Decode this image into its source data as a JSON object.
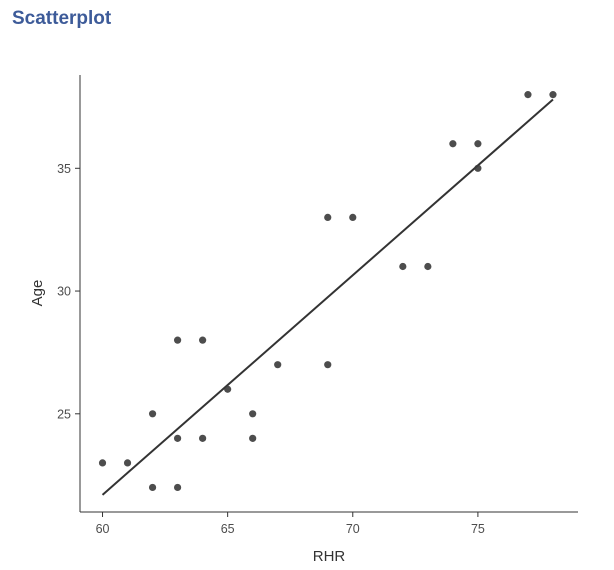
{
  "page": {
    "title": "Scatterplot"
  },
  "chart_data": {
    "type": "scatter",
    "title": "",
    "xlabel": "RHR",
    "ylabel": "Age",
    "xlim": [
      59.1,
      79.0
    ],
    "ylim": [
      21.0,
      38.8
    ],
    "xticks": [
      60,
      65,
      70,
      75
    ],
    "yticks": [
      25,
      30,
      35
    ],
    "grid": false,
    "legend": "none",
    "point_color": "#3a3a3a",
    "line_color": "#333333",
    "points": [
      {
        "x": 60,
        "y": 23
      },
      {
        "x": 61,
        "y": 23
      },
      {
        "x": 62,
        "y": 25
      },
      {
        "x": 62,
        "y": 22
      },
      {
        "x": 63,
        "y": 28
      },
      {
        "x": 63,
        "y": 24
      },
      {
        "x": 63,
        "y": 22
      },
      {
        "x": 64,
        "y": 28
      },
      {
        "x": 64,
        "y": 24
      },
      {
        "x": 65,
        "y": 26
      },
      {
        "x": 66,
        "y": 25
      },
      {
        "x": 66,
        "y": 24
      },
      {
        "x": 67,
        "y": 27
      },
      {
        "x": 69,
        "y": 33
      },
      {
        "x": 69,
        "y": 27
      },
      {
        "x": 70,
        "y": 33
      },
      {
        "x": 72,
        "y": 31
      },
      {
        "x": 73,
        "y": 31
      },
      {
        "x": 74,
        "y": 36
      },
      {
        "x": 75,
        "y": 36
      },
      {
        "x": 75,
        "y": 35
      },
      {
        "x": 77,
        "y": 38
      },
      {
        "x": 78,
        "y": 38
      }
    ],
    "fit_line": {
      "x": [
        60,
        78
      ],
      "y": [
        21.7,
        37.8
      ]
    }
  }
}
